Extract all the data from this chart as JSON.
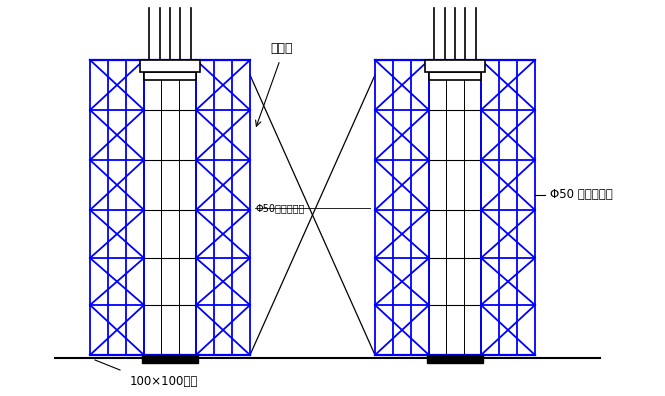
{
  "bg_color": "#ffffff",
  "blue": "#0000ff",
  "black": "#000000",
  "annotation_pedestrian": "人行桥",
  "annotation_scaffold_right": "Φ50 钉管脚手架",
  "annotation_scaffold_mid": "Φ50钉管脚手架",
  "annotation_wood": "100×100方木",
  "fig_width": 6.65,
  "fig_height": 3.96,
  "dpi": 100
}
